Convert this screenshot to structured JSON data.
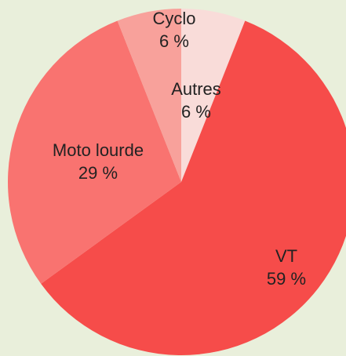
{
  "chart_data": {
    "type": "pie",
    "categories": [
      "Autres",
      "VT",
      "Moto lourde",
      "Cyclo"
    ],
    "values": [
      6,
      59,
      29,
      6
    ],
    "value_labels": [
      "6 %",
      "59 %",
      "29 %",
      "6 %"
    ],
    "colors": [
      "#f9dcd9",
      "#f64c4a",
      "#f97370",
      "#f8a19b"
    ]
  }
}
